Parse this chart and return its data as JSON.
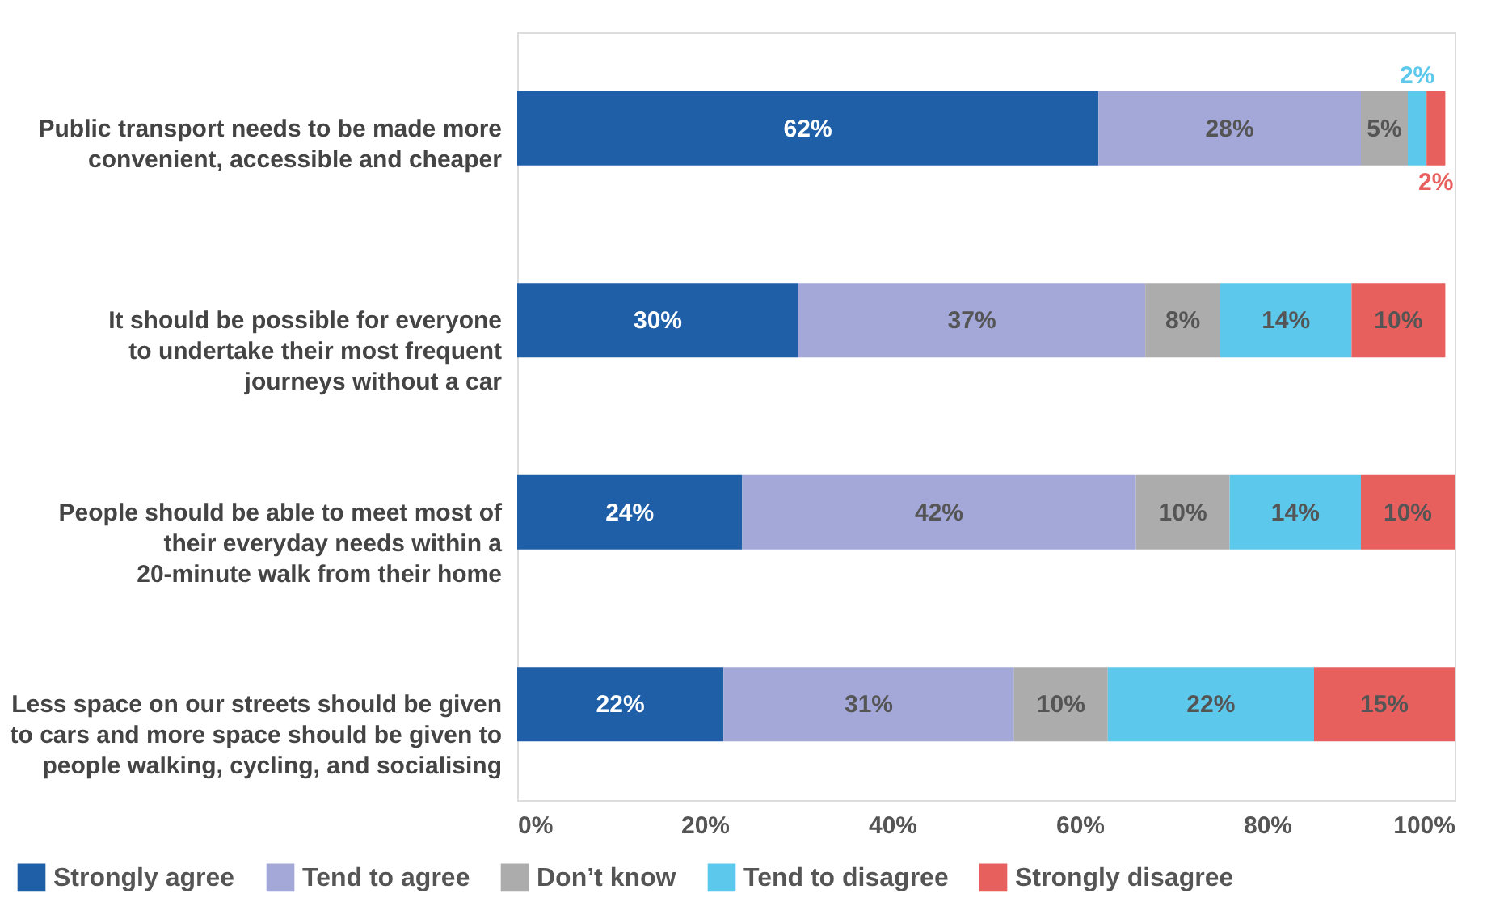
{
  "chart_data": {
    "type": "bar",
    "orientation": "horizontal",
    "stacked": true,
    "data_labels": true,
    "legend": "bottom",
    "grid": false,
    "categories": [
      "Public transport needs to be made more\nconvenient, accessible and cheaper",
      "It should be possible for everyone\nto undertake their most frequent\njourneys without a car",
      "People should be able to meet most of\ntheir everyday needs within a\n20-minute walk from their home",
      "Less space on our streets should be given\nto cars and more space should be given to\npeople walking, cycling, and socialising"
    ],
    "series": [
      {
        "name": "Strongly agree",
        "color": "#1f5fa8",
        "values": [
          62,
          30,
          24,
          22
        ],
        "value_labels": [
          "62%",
          "30%",
          "24%",
          "22%"
        ]
      },
      {
        "name": "Tend to agree",
        "color": "#a3a8d8",
        "values": [
          28,
          37,
          42,
          31
        ],
        "value_labels": [
          "28%",
          "37%",
          "42%",
          "31%"
        ]
      },
      {
        "name": "Don’t know",
        "color": "#acacac",
        "values": [
          5,
          8,
          10,
          10
        ],
        "value_labels": [
          "5%",
          "8%",
          "10%",
          "10%"
        ]
      },
      {
        "name": "Tend to disagree",
        "color": "#5bc8ec",
        "values": [
          2,
          14,
          14,
          22
        ],
        "value_labels": [
          "2%",
          "14%",
          "14%",
          "22%"
        ]
      },
      {
        "name": "Strongly disagree",
        "color": "#e8605e",
        "values": [
          2,
          10,
          10,
          15
        ],
        "value_labels": [
          "2%",
          "10%",
          "10%",
          "15%"
        ]
      }
    ],
    "xlim": [
      0,
      100
    ],
    "xticks": [
      {
        "value": 0,
        "label": "0%"
      },
      {
        "value": 20,
        "label": "20%"
      },
      {
        "value": 40,
        "label": "40%"
      },
      {
        "value": 60,
        "label": "60%"
      },
      {
        "value": 80,
        "label": "80%"
      },
      {
        "value": 100,
        "label": "100%"
      }
    ]
  }
}
